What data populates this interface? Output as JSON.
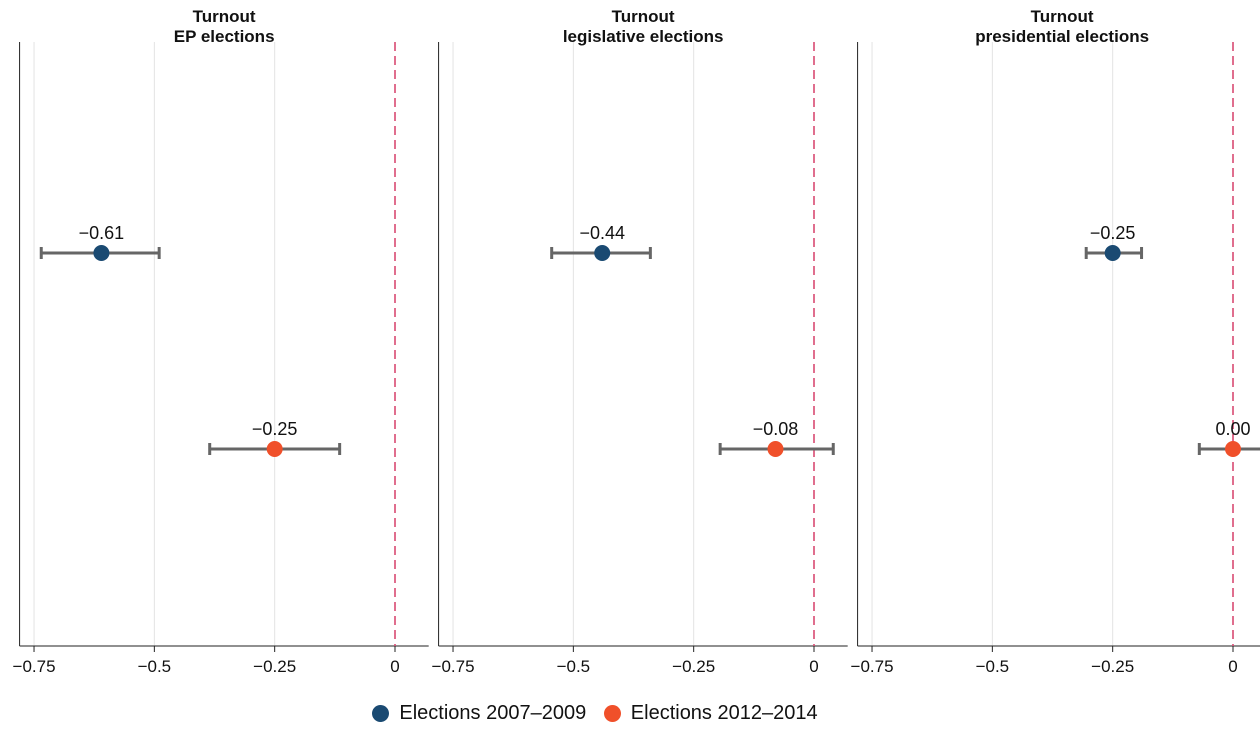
{
  "chart_data": {
    "type": "scatter",
    "xticks": [
      -0.75,
      -0.5,
      -0.25,
      0
    ],
    "xtick_labels": [
      "−0.75",
      "−0.5",
      "−0.25",
      "0"
    ],
    "xlim": [
      -0.78,
      0.07
    ],
    "reference_line": 0,
    "grid": "vertical",
    "legend_position": "bottom",
    "series": [
      {
        "name": "Elections 2007–2009",
        "color": "#1a4a72"
      },
      {
        "name": "Elections 2012–2014",
        "color": "#f0502a"
      }
    ],
    "panels": [
      {
        "title_line1": "Turnout",
        "title_line2": "EP elections",
        "points": [
          {
            "series": 0,
            "estimate": -0.61,
            "ci_low": -0.735,
            "ci_high": -0.49,
            "label": "−0.61"
          },
          {
            "series": 1,
            "estimate": -0.25,
            "ci_low": -0.385,
            "ci_high": -0.115,
            "label": "−0.25"
          }
        ]
      },
      {
        "title_line1": "Turnout",
        "title_line2": "legislative elections",
        "points": [
          {
            "series": 0,
            "estimate": -0.44,
            "ci_low": -0.545,
            "ci_high": -0.34,
            "label": "−0.44"
          },
          {
            "series": 1,
            "estimate": -0.08,
            "ci_low": -0.195,
            "ci_high": 0.04,
            "label": "−0.08"
          }
        ]
      },
      {
        "title_line1": "Turnout",
        "title_line2": "presidential elections",
        "points": [
          {
            "series": 0,
            "estimate": -0.25,
            "ci_low": -0.305,
            "ci_high": -0.19,
            "label": "−0.25"
          },
          {
            "series": 1,
            "estimate": 0.0,
            "ci_low": -0.07,
            "ci_high": 0.07,
            "label": "0.00"
          }
        ]
      }
    ]
  },
  "colors": {
    "grid": "#e3e3e3",
    "axis": "#222222",
    "errorbar": "#666666",
    "reference": "#d94a72"
  }
}
